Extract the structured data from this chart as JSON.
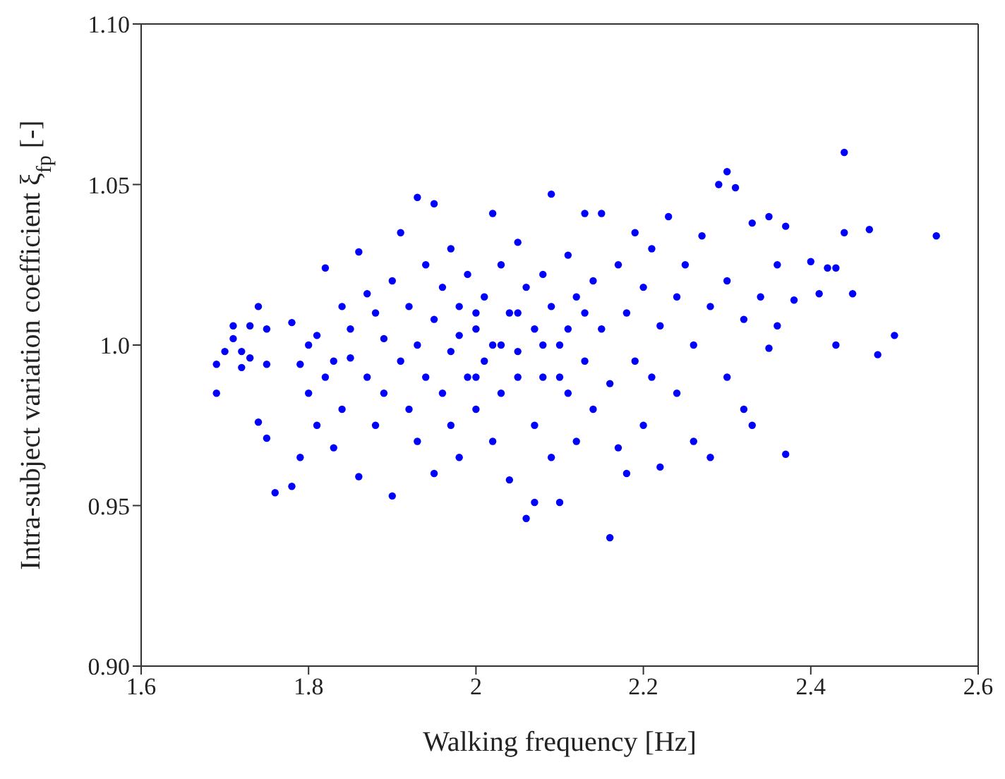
{
  "chart_data": {
    "type": "scatter",
    "xlabel": "Walking frequency [Hz]",
    "ylabel": "Intra-subject variation coefficient ξ$_{fp}$ [-]",
    "marker": "circle",
    "legend": false,
    "xlim": [
      1.6,
      2.6
    ],
    "xticks": [
      1.6,
      1.8,
      2,
      2.2,
      2.4,
      2.6
    ],
    "ylim": [
      0.9,
      1.1
    ],
    "yticks": [
      {
        "value": 0.9,
        "label": "0.90"
      },
      0.95,
      {
        "value": 1,
        "label": "1.0"
      },
      1.05,
      {
        "value": 1.1,
        "label": "1.10"
      }
    ],
    "series": [
      {
        "color": "#0000ff",
        "x": [
          1.69,
          1.69,
          1.7,
          1.71,
          1.71,
          1.72,
          1.72,
          1.73,
          1.73,
          1.74,
          1.74,
          1.75,
          1.75,
          1.75,
          1.76,
          1.78,
          1.78,
          1.79,
          1.79,
          1.8,
          1.8,
          1.81,
          1.81,
          1.82,
          1.82,
          1.83,
          1.83,
          1.84,
          1.84,
          1.85,
          1.85,
          1.86,
          1.86,
          1.87,
          1.87,
          1.88,
          1.88,
          1.89,
          1.89,
          1.9,
          1.9,
          1.91,
          1.91,
          1.92,
          1.92,
          1.93,
          1.93,
          1.93,
          1.94,
          1.94,
          1.95,
          1.95,
          1.95,
          1.96,
          1.96,
          1.97,
          1.97,
          1.97,
          1.98,
          1.98,
          1.99,
          1.99,
          2.0,
          2.0,
          2.01,
          2.01,
          2.02,
          2.02,
          2.02,
          2.03,
          2.03,
          2.04,
          2.04,
          2.05,
          2.05,
          2.06,
          2.06,
          2.07,
          2.07,
          2.07,
          2.08,
          2.08,
          2.09,
          2.09,
          2.09,
          2.1,
          2.1,
          2.11,
          2.11,
          2.12,
          2.12,
          2.13,
          2.13,
          2.14,
          2.14,
          2.15,
          2.15,
          2.16,
          2.16,
          2.17,
          2.17,
          2.18,
          2.18,
          2.19,
          2.19,
          2.2,
          2.2,
          2.21,
          2.21,
          2.22,
          2.22,
          2.23,
          2.24,
          2.24,
          2.25,
          2.26,
          2.26,
          2.27,
          2.28,
          2.28,
          2.29,
          2.3,
          2.3,
          2.3,
          2.31,
          2.32,
          2.32,
          2.33,
          2.33,
          2.34,
          2.35,
          2.35,
          2.36,
          2.36,
          2.37,
          2.37,
          2.38,
          2.4,
          2.41,
          2.42,
          2.43,
          2.43,
          2.44,
          2.44,
          2.45,
          2.47,
          2.48,
          2.5,
          2.55,
          1.98,
          2.0,
          2.03,
          2.05,
          2.08,
          2.11,
          2.13,
          2.0,
          2.05,
          2.1
        ],
        "values": [
          0.985,
          0.994,
          0.998,
          1.002,
          1.006,
          0.993,
          0.998,
          1.006,
          0.996,
          1.012,
          0.976,
          1.005,
          0.994,
          0.971,
          0.954,
          0.956,
          1.007,
          0.994,
          0.965,
          0.985,
          1.0,
          0.975,
          1.003,
          1.024,
          0.99,
          0.995,
          0.968,
          1.012,
          0.98,
          1.005,
          0.996,
          0.959,
          1.029,
          1.016,
          0.99,
          1.01,
          0.975,
          1.002,
          0.985,
          1.02,
          0.953,
          1.035,
          0.995,
          1.012,
          0.98,
          1.046,
          1.0,
          0.97,
          1.025,
          0.99,
          1.044,
          1.008,
          0.96,
          1.018,
          0.985,
          1.03,
          0.998,
          0.975,
          1.012,
          0.965,
          1.022,
          0.99,
          1.005,
          0.98,
          1.015,
          0.995,
          1.041,
          1.0,
          0.97,
          1.025,
          0.985,
          1.01,
          0.958,
          1.032,
          0.998,
          1.018,
          0.946,
          1.005,
          0.975,
          0.951,
          1.022,
          0.99,
          1.047,
          1.012,
          0.965,
          1.0,
          0.951,
          1.028,
          0.985,
          1.015,
          0.97,
          1.041,
          0.995,
          1.02,
          0.98,
          1.041,
          1.005,
          0.988,
          0.94,
          1.025,
          0.968,
          1.01,
          0.96,
          1.035,
          0.995,
          1.018,
          0.975,
          1.03,
          0.99,
          1.006,
          0.962,
          1.04,
          1.015,
          0.985,
          1.025,
          1.0,
          0.97,
          1.034,
          1.012,
          0.965,
          1.05,
          1.054,
          1.02,
          0.99,
          1.049,
          1.008,
          0.98,
          1.038,
          0.975,
          1.015,
          1.04,
          0.999,
          1.025,
          1.006,
          1.037,
          0.966,
          1.014,
          1.026,
          1.016,
          1.024,
          1.024,
          1.0,
          1.06,
          1.035,
          1.016,
          1.036,
          0.997,
          1.003,
          1.034,
          1.003,
          1.01,
          1.0,
          1.01,
          1.0,
          1.005,
          1.01,
          0.99,
          0.99,
          0.99
        ]
      }
    ]
  }
}
